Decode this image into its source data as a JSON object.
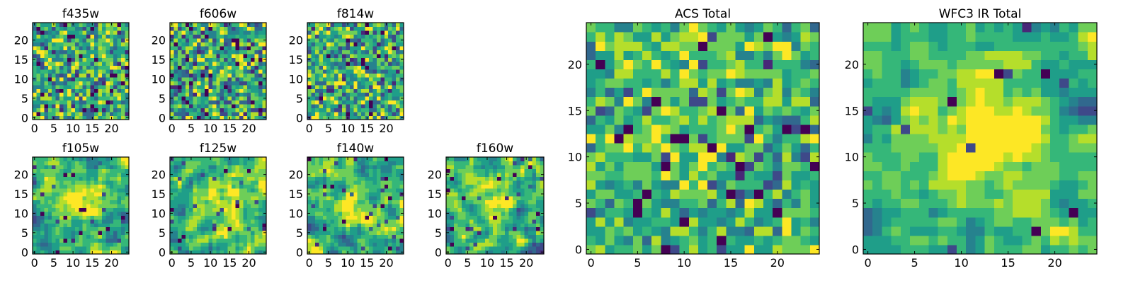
{
  "figure": {
    "colormap": [
      "#440154",
      "#482878",
      "#3e4989",
      "#31688e",
      "#26828e",
      "#1f9e89",
      "#35b779",
      "#6ece58",
      "#b5de2b",
      "#fde725"
    ]
  },
  "chart_data": [
    {
      "type": "heatmap",
      "name": "f435w",
      "title": "f435w",
      "grid": false,
      "nx": 25,
      "ny": 25,
      "xlim": [
        -0.5,
        24.5
      ],
      "ylim": [
        -0.5,
        24.5
      ],
      "x_ticks": [
        0,
        5,
        10,
        15,
        20
      ],
      "y_ticks": [
        0,
        5,
        10,
        15,
        20
      ],
      "x_tick_labels": [
        "0",
        "5",
        "10",
        "15",
        "20"
      ],
      "y_tick_labels": [
        "0",
        "5",
        "10",
        "15",
        "20"
      ],
      "value_range": [
        0,
        1
      ],
      "seed": 435,
      "smooth": 0,
      "noise_amp": 0.2,
      "outlier_rate": 0.05,
      "blobs": []
    },
    {
      "type": "heatmap",
      "name": "f606w",
      "title": "f606w",
      "grid": false,
      "nx": 25,
      "ny": 25,
      "xlim": [
        -0.5,
        24.5
      ],
      "ylim": [
        -0.5,
        24.5
      ],
      "x_ticks": [
        0,
        5,
        10,
        15,
        20
      ],
      "y_ticks": [
        0,
        5,
        10,
        15,
        20
      ],
      "x_tick_labels": [
        "0",
        "5",
        "10",
        "15",
        "20"
      ],
      "y_tick_labels": [
        "0",
        "5",
        "10",
        "15",
        "20"
      ],
      "value_range": [
        0,
        1
      ],
      "seed": 606,
      "smooth": 0,
      "noise_amp": 0.22,
      "outlier_rate": 0.06,
      "blobs": []
    },
    {
      "type": "heatmap",
      "name": "f814w",
      "title": "f814w",
      "grid": false,
      "nx": 25,
      "ny": 25,
      "xlim": [
        -0.5,
        24.5
      ],
      "ylim": [
        -0.5,
        24.5
      ],
      "x_ticks": [
        0,
        5,
        10,
        15,
        20
      ],
      "y_ticks": [
        0,
        5,
        10,
        15,
        20
      ],
      "x_tick_labels": [
        "0",
        "5",
        "10",
        "15",
        "20"
      ],
      "y_tick_labels": [
        "0",
        "5",
        "10",
        "15",
        "20"
      ],
      "value_range": [
        0,
        1
      ],
      "seed": 814,
      "smooth": 0,
      "noise_amp": 0.2,
      "outlier_rate": 0.05,
      "blobs": []
    },
    {
      "type": "heatmap",
      "name": "f105w",
      "title": "f105w",
      "grid": false,
      "nx": 25,
      "ny": 25,
      "xlim": [
        -0.5,
        24.5
      ],
      "ylim": [
        -0.5,
        24.5
      ],
      "x_ticks": [
        0,
        5,
        10,
        15,
        20
      ],
      "y_ticks": [
        0,
        5,
        10,
        15,
        20
      ],
      "x_tick_labels": [
        "0",
        "5",
        "10",
        "15",
        "20"
      ],
      "y_tick_labels": [
        "0",
        "5",
        "10",
        "15",
        "20"
      ],
      "value_range": [
        0,
        1
      ],
      "seed": 105,
      "smooth": 1,
      "noise_amp": 0.12,
      "outlier_rate": 0.02,
      "blobs": [
        {
          "x": 12,
          "y": 14,
          "sigma": 4,
          "amp": 0.3
        }
      ]
    },
    {
      "type": "heatmap",
      "name": "f125w",
      "title": "f125w",
      "grid": false,
      "nx": 25,
      "ny": 25,
      "xlim": [
        -0.5,
        24.5
      ],
      "ylim": [
        -0.5,
        24.5
      ],
      "x_ticks": [
        0,
        5,
        10,
        15,
        20
      ],
      "y_ticks": [
        0,
        5,
        10,
        15,
        20
      ],
      "x_tick_labels": [
        "0",
        "5",
        "10",
        "15",
        "20"
      ],
      "y_tick_labels": [
        "0",
        "5",
        "10",
        "15",
        "20"
      ],
      "value_range": [
        0,
        1
      ],
      "seed": 125,
      "smooth": 1,
      "noise_amp": 0.12,
      "outlier_rate": 0.02,
      "blobs": [
        {
          "x": 13,
          "y": 11,
          "sigma": 5,
          "amp": 0.3
        }
      ]
    },
    {
      "type": "heatmap",
      "name": "f140w",
      "title": "f140w",
      "grid": false,
      "nx": 25,
      "ny": 25,
      "xlim": [
        -0.5,
        24.5
      ],
      "ylim": [
        -0.5,
        24.5
      ],
      "x_ticks": [
        0,
        5,
        10,
        15,
        20
      ],
      "y_ticks": [
        0,
        5,
        10,
        15,
        20
      ],
      "x_tick_labels": [
        "0",
        "5",
        "10",
        "15",
        "20"
      ],
      "y_tick_labels": [
        "0",
        "5",
        "10",
        "15",
        "20"
      ],
      "value_range": [
        0,
        1
      ],
      "seed": 140,
      "smooth": 1,
      "noise_amp": 0.13,
      "outlier_rate": 0.02,
      "blobs": [
        {
          "x": 12,
          "y": 12,
          "sigma": 4,
          "amp": 0.3
        }
      ]
    },
    {
      "type": "heatmap",
      "name": "f160w",
      "title": "f160w",
      "grid": false,
      "nx": 25,
      "ny": 25,
      "xlim": [
        -0.5,
        24.5
      ],
      "ylim": [
        -0.5,
        24.5
      ],
      "x_ticks": [
        0,
        5,
        10,
        15,
        20
      ],
      "y_ticks": [
        0,
        5,
        10,
        15,
        20
      ],
      "x_tick_labels": [
        "0",
        "5",
        "10",
        "15",
        "20"
      ],
      "y_tick_labels": [
        "0",
        "5",
        "10",
        "15",
        "20"
      ],
      "value_range": [
        0,
        1
      ],
      "seed": 160,
      "smooth": 1,
      "noise_amp": 0.13,
      "outlier_rate": 0.02,
      "blobs": [
        {
          "x": 12,
          "y": 13,
          "sigma": 4,
          "amp": 0.3
        }
      ]
    },
    {
      "type": "heatmap",
      "name": "acs-total",
      "title": "ACS Total",
      "grid": false,
      "nx": 25,
      "ny": 25,
      "xlim": [
        -0.5,
        24.5
      ],
      "ylim": [
        -0.5,
        24.5
      ],
      "x_ticks": [
        0,
        5,
        10,
        15,
        20
      ],
      "y_ticks": [
        0,
        5,
        10,
        15,
        20
      ],
      "x_tick_labels": [
        "0",
        "5",
        "10",
        "15",
        "20"
      ],
      "y_tick_labels": [
        "0",
        "5",
        "10",
        "15",
        "20"
      ],
      "value_range": [
        0,
        1
      ],
      "seed": 777,
      "smooth": 0,
      "noise_amp": 0.15,
      "outlier_rate": 0.03,
      "blobs": [
        {
          "x": 11,
          "y": 16,
          "sigma": 6,
          "amp": 0.15
        }
      ]
    },
    {
      "type": "heatmap",
      "name": "wfc3-ir-total",
      "title": "WFC3 IR Total",
      "grid": false,
      "nx": 25,
      "ny": 25,
      "xlim": [
        -0.5,
        24.5
      ],
      "ylim": [
        -0.5,
        24.5
      ],
      "x_ticks": [
        0,
        5,
        10,
        15,
        20
      ],
      "y_ticks": [
        0,
        5,
        10,
        15,
        20
      ],
      "x_tick_labels": [
        "0",
        "5",
        "10",
        "15",
        "20"
      ],
      "y_tick_labels": [
        "0",
        "5",
        "10",
        "15",
        "20"
      ],
      "value_range": [
        0,
        1
      ],
      "seed": 999,
      "smooth": 1,
      "noise_amp": 0.1,
      "outlier_rate": 0.015,
      "blobs": [
        {
          "x": 13,
          "y": 12,
          "sigma": 5,
          "amp": 0.35
        }
      ]
    }
  ]
}
